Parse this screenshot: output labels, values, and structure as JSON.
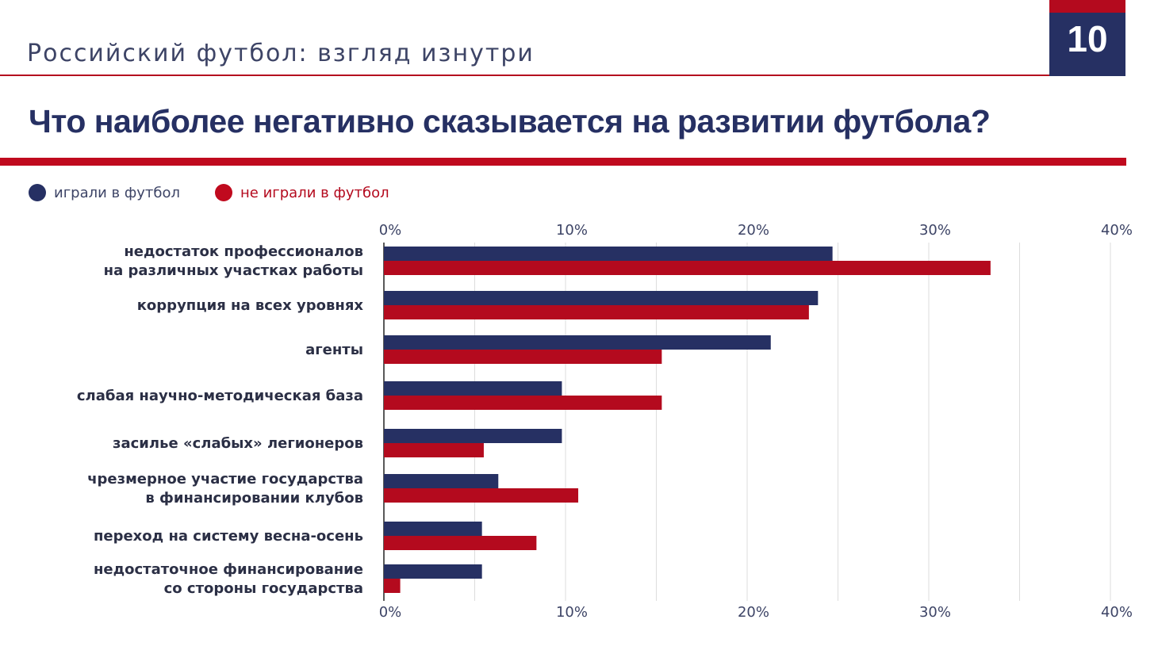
{
  "header": {
    "subtitle": "Российский футбол: взгляд изнутри",
    "page_number": "10",
    "title": "Что наиболее негативно сказывается на развитии футбола?"
  },
  "colors": {
    "navy": "#263063",
    "red": "#b40a1e",
    "grid": "#dddddd"
  },
  "chart_data": {
    "type": "bar",
    "orientation": "horizontal",
    "title": "Что наиболее негативно сказывается на развитии футбола?",
    "xlim": [
      0,
      40
    ],
    "x_ticks": [
      "0%",
      "10%",
      "20%",
      "30%",
      "40%"
    ],
    "x_tick_values": [
      0,
      10,
      20,
      30,
      40
    ],
    "grid": true,
    "legend_position": "top-left",
    "categories": [
      [
        "недостаток профессионалов",
        "на различных участках работы"
      ],
      [
        "коррупция на всех уровнях"
      ],
      [
        "агенты"
      ],
      [
        "слабая научно-методическая база"
      ],
      [
        "засилье «слабых» легионеров"
      ],
      [
        "чрезмерное участие государства",
        "в финансировании клубов"
      ],
      [
        "переход на систему весна-осень"
      ],
      [
        "недостаточное финансирование",
        "со стороны государства"
      ]
    ],
    "series": [
      {
        "name": "играли в футбол",
        "color": "#263063",
        "values": [
          24.7,
          23.9,
          21.3,
          9.8,
          9.8,
          6.3,
          5.4,
          5.4
        ]
      },
      {
        "name": "не играли в футбол",
        "color": "#b40a1e",
        "values": [
          33.4,
          23.4,
          15.3,
          15.3,
          5.5,
          10.7,
          8.4,
          0.9
        ]
      }
    ]
  }
}
